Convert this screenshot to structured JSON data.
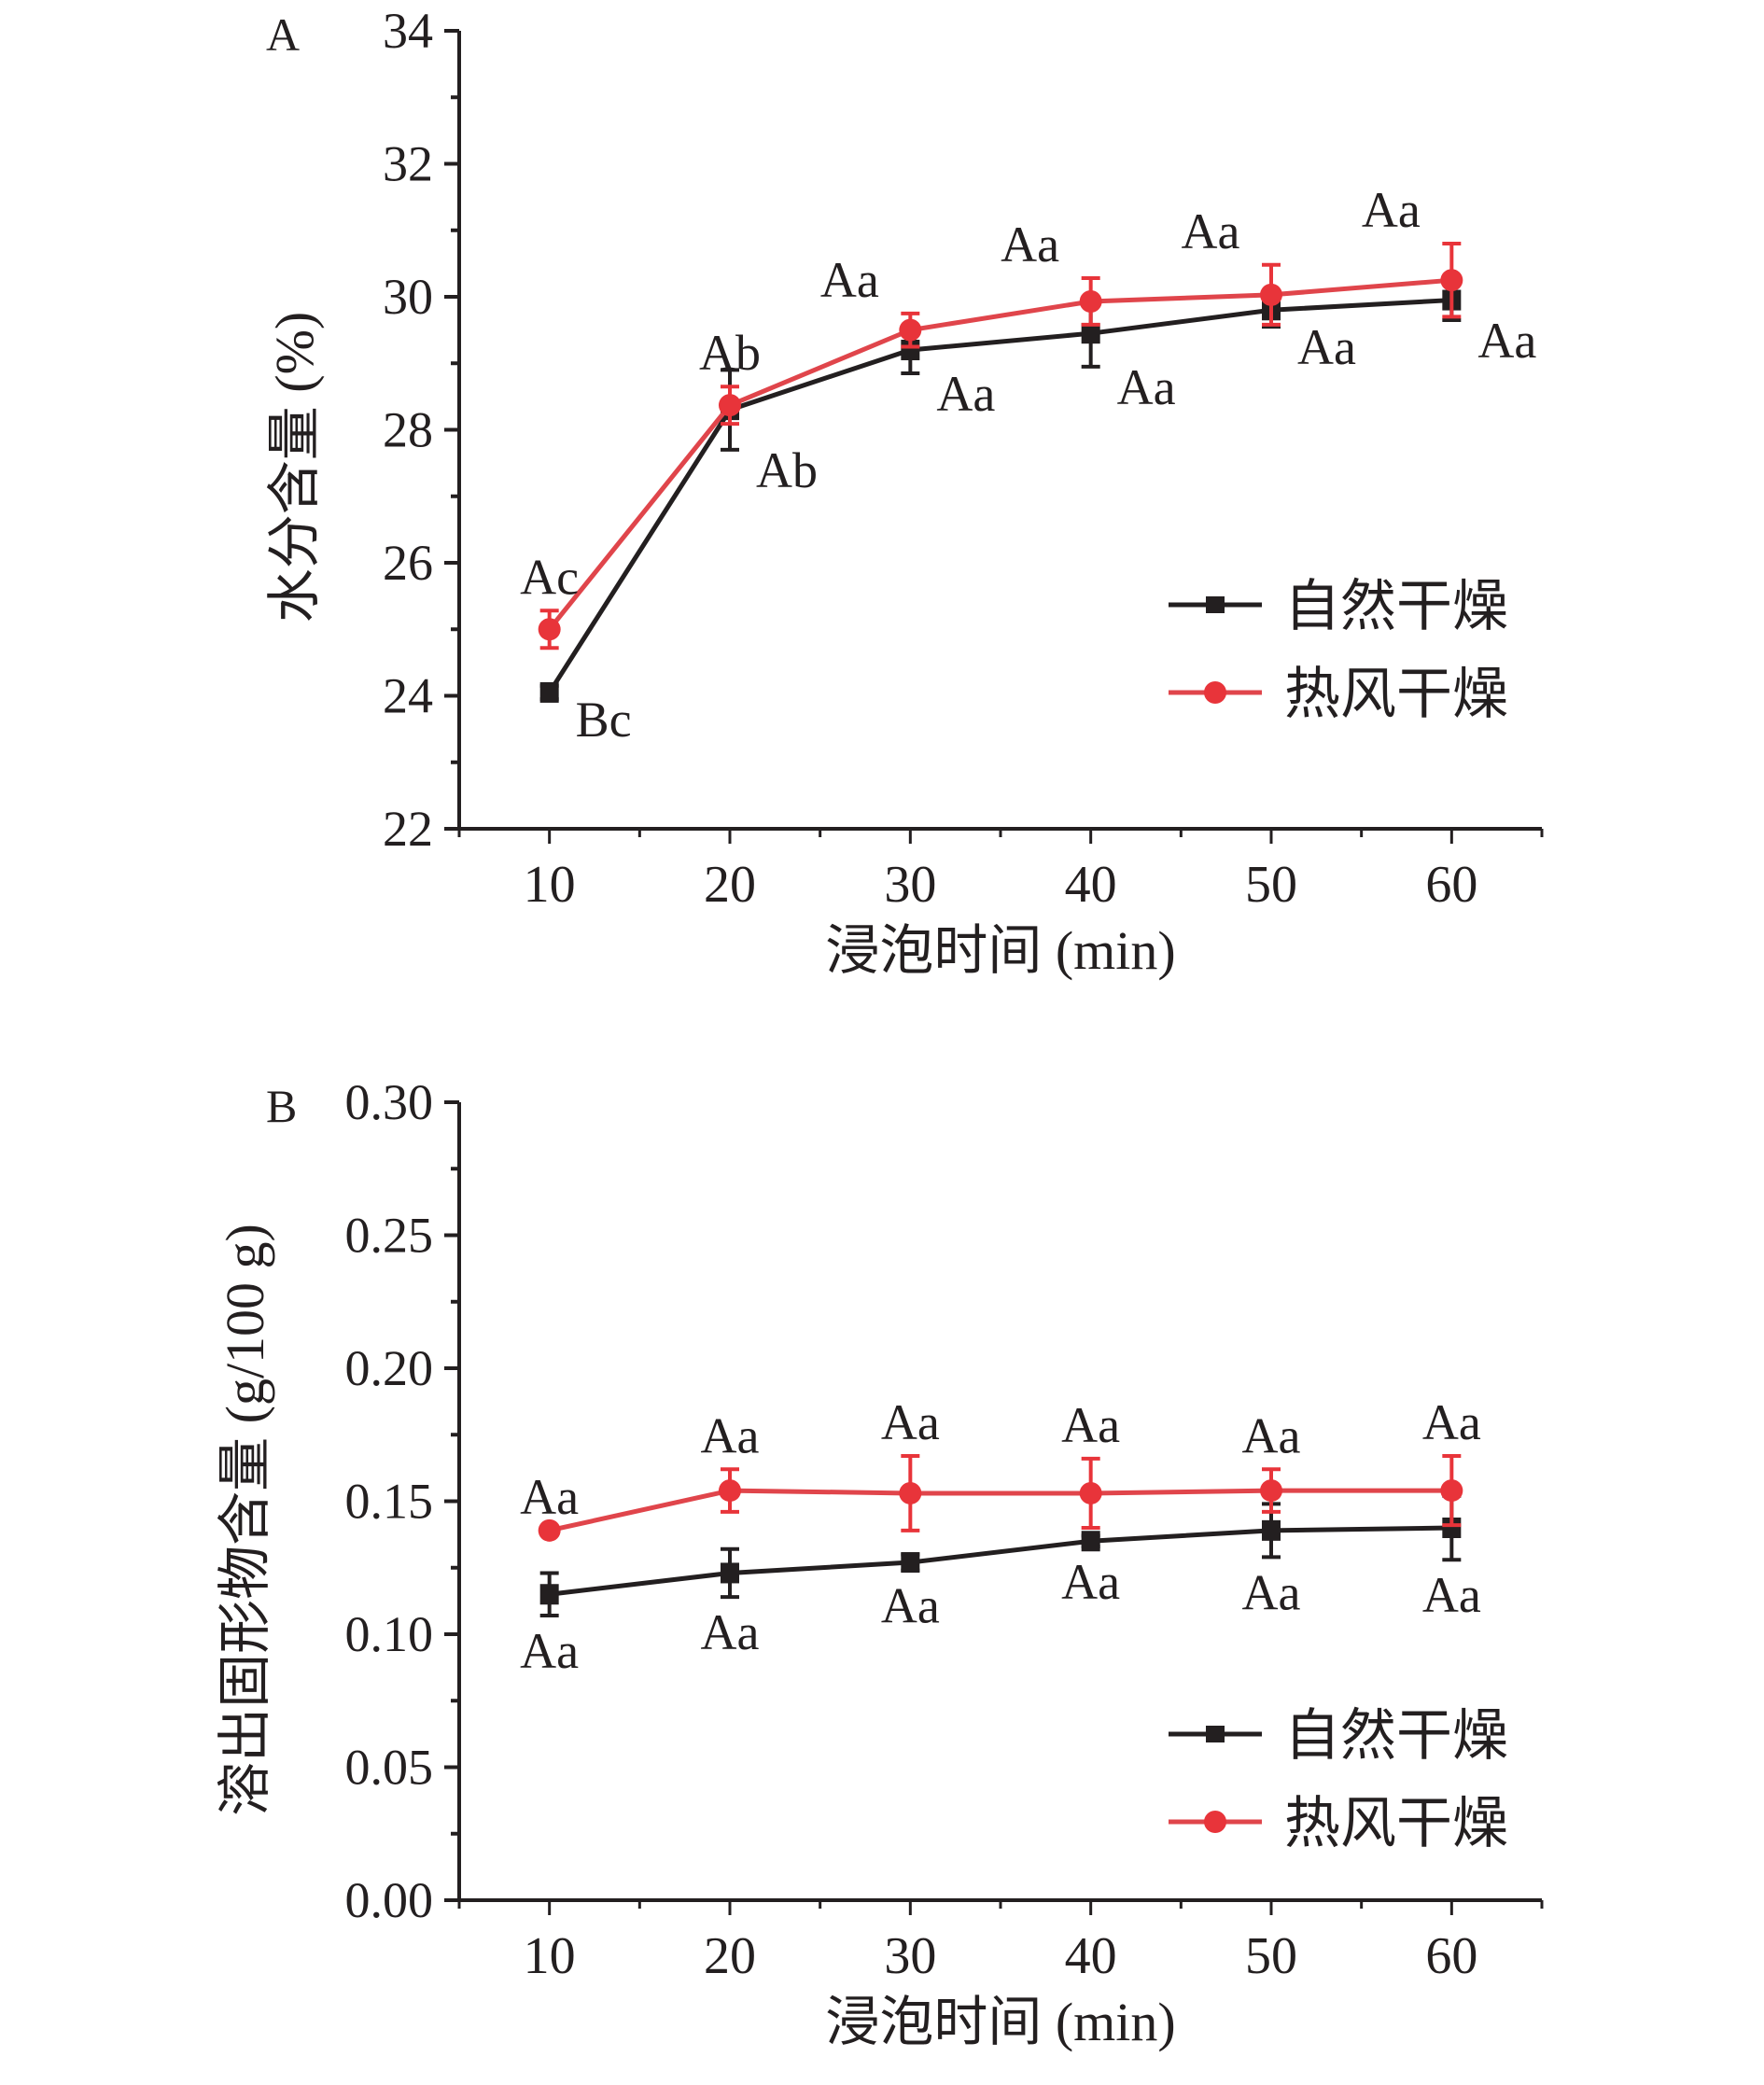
{
  "colors": {
    "natural": "#231f20",
    "hot": "#e8343a",
    "hot_line": "#e0454b",
    "axis": "#231f20"
  },
  "chart_data": [
    {
      "type": "line",
      "panel_label": "A",
      "xlabel": "浸泡时间 (min)",
      "ylabel": "水分含量 (%)",
      "x": [
        10,
        20,
        30,
        40,
        50,
        60
      ],
      "xlim": [
        5,
        65
      ],
      "ylim": [
        22,
        34
      ],
      "yticks": [
        22,
        24,
        26,
        28,
        30,
        32,
        34
      ],
      "ytick_labels": [
        "22",
        "24",
        "26",
        "28",
        "30",
        "32",
        "34"
      ],
      "xtick_labels": [
        "10",
        "20",
        "30",
        "40",
        "50",
        "60"
      ],
      "legend_position": "right",
      "series": [
        {
          "name": "自然干燥",
          "marker": "square",
          "color_key": "natural",
          "values": [
            24.05,
            28.3,
            29.2,
            29.45,
            29.8,
            29.95
          ],
          "errors": [
            0.1,
            0.6,
            0.35,
            0.5,
            0.25,
            0.3
          ],
          "labels": [
            "Bc",
            "Ab",
            "Aa",
            "Aa",
            "Aa",
            "Aa"
          ],
          "label_pos": "below-right"
        },
        {
          "name": "热风干燥",
          "marker": "circle",
          "color_key": "hot",
          "values": [
            25.0,
            28.37,
            29.5,
            29.93,
            30.03,
            30.25
          ],
          "errors": [
            0.28,
            0.28,
            0.25,
            0.35,
            0.45,
            0.55
          ],
          "labels": [
            "Ac",
            "Ab",
            "Aa",
            "Aa",
            "Aa",
            "Aa"
          ],
          "label_pos": "above"
        }
      ]
    },
    {
      "type": "line",
      "panel_label": "B",
      "xlabel": "浸泡时间 (min)",
      "ylabel": "溶出固形物含量 (g/100 g)",
      "x": [
        10,
        20,
        30,
        40,
        50,
        60
      ],
      "xlim": [
        5,
        65
      ],
      "ylim": [
        0,
        0.3
      ],
      "yticks": [
        0,
        0.05,
        0.1,
        0.15,
        0.2,
        0.25,
        0.3
      ],
      "ytick_labels": [
        "0.00",
        "0.05",
        "0.10",
        "0.15",
        "0.20",
        "0.25",
        "0.30"
      ],
      "xtick_labels": [
        "10",
        "20",
        "30",
        "40",
        "50",
        "60"
      ],
      "legend_position": "lower-right",
      "series": [
        {
          "name": "自然干燥",
          "marker": "square",
          "color_key": "natural",
          "values": [
            0.115,
            0.123,
            0.127,
            0.135,
            0.139,
            0.14
          ],
          "errors": [
            0.008,
            0.009,
            0.003,
            0.002,
            0.01,
            0.012
          ],
          "labels": [
            "Aa",
            "Aa",
            "Aa",
            "Aa",
            "Aa",
            "Aa"
          ],
          "label_pos": "below"
        },
        {
          "name": "热风干燥",
          "marker": "circle",
          "color_key": "hot",
          "values": [
            0.139,
            0.154,
            0.153,
            0.153,
            0.154,
            0.154
          ],
          "errors": [
            0.0,
            0.008,
            0.014,
            0.013,
            0.008,
            0.013
          ],
          "labels": [
            "Aa",
            "Aa",
            "Aa",
            "Aa",
            "Aa",
            "Aa"
          ],
          "label_pos": "above"
        }
      ]
    }
  ]
}
